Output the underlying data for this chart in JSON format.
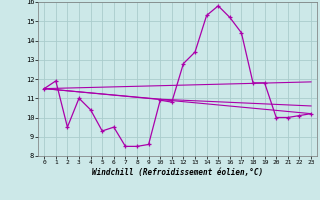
{
  "xlabel": "Windchill (Refroidissement éolien,°C)",
  "background_color": "#cce8e8",
  "grid_color": "#aacccc",
  "line_color": "#aa00aa",
  "xlim": [
    -0.5,
    23.5
  ],
  "ylim": [
    8,
    16
  ],
  "yticks": [
    8,
    9,
    10,
    11,
    12,
    13,
    14,
    15,
    16
  ],
  "xticks": [
    0,
    1,
    2,
    3,
    4,
    5,
    6,
    7,
    8,
    9,
    10,
    11,
    12,
    13,
    14,
    15,
    16,
    17,
    18,
    19,
    20,
    21,
    22,
    23
  ],
  "main_x": [
    0,
    1,
    2,
    3,
    4,
    5,
    6,
    7,
    8,
    9,
    10,
    11,
    12,
    13,
    14,
    15,
    16,
    17,
    18,
    19,
    20,
    21,
    22,
    23
  ],
  "main_y": [
    11.5,
    11.9,
    9.5,
    11.0,
    10.4,
    9.3,
    9.5,
    8.5,
    8.5,
    8.6,
    10.9,
    10.8,
    12.8,
    13.4,
    15.3,
    15.8,
    15.2,
    14.4,
    11.8,
    11.8,
    10.0,
    10.0,
    10.1,
    10.2
  ],
  "trend1_x": [
    0,
    23
  ],
  "trend1_y": [
    11.5,
    10.2
  ],
  "trend2_x": [
    0,
    10,
    23
  ],
  "trend2_y": [
    11.5,
    10.95,
    10.6
  ],
  "trend3_x": [
    0,
    23
  ],
  "trend3_y": [
    11.5,
    11.85
  ]
}
